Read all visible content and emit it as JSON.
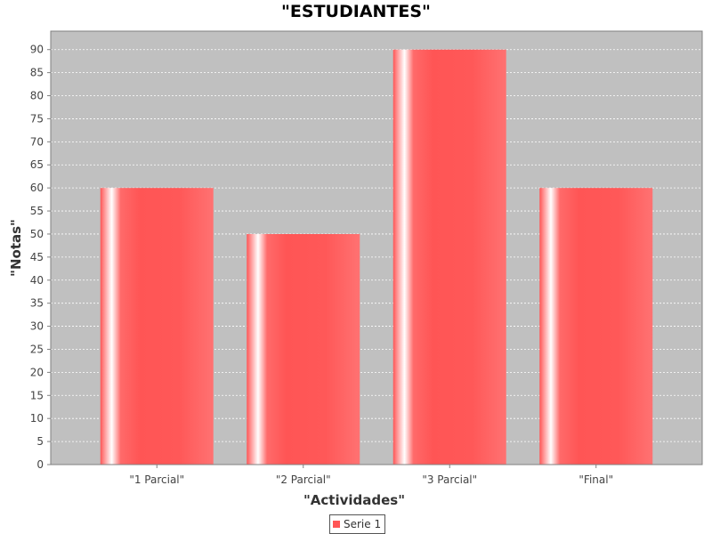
{
  "chart_data": {
    "type": "bar",
    "title": "\"ESTUDIANTES\"",
    "xlabel": "\"Actividades\"",
    "ylabel": "\"Notas\"",
    "categories": [
      "\"1 Parcial\"",
      "\"2 Parcial\"",
      "\"3 Parcial\"",
      "\"Final\""
    ],
    "series": [
      {
        "name": "Serie 1",
        "values": [
          60,
          50,
          90,
          60
        ],
        "color": "#ff5555"
      }
    ],
    "ylim": [
      0,
      94
    ],
    "yticks": [
      0,
      5,
      10,
      15,
      20,
      25,
      30,
      35,
      40,
      45,
      50,
      55,
      60,
      65,
      70,
      75,
      80,
      85,
      90
    ],
    "grid": true,
    "plot_background": "#c0c0c0",
    "gridline_color": "#ffffff",
    "legend_position": "bottom-center"
  }
}
